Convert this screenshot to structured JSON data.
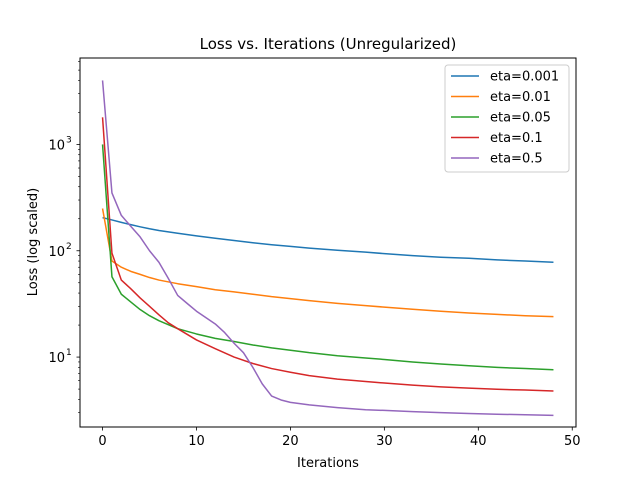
{
  "chart_data": {
    "type": "line",
    "title": "Loss vs. Iterations (Unregularized)",
    "xlabel": "Iterations",
    "ylabel": "Loss (log scaled)",
    "yscale": "log",
    "xlim": [
      -2.4,
      50.4
    ],
    "ylim": [
      2.2,
      6500
    ],
    "x_ticks": [
      0,
      10,
      20,
      30,
      40,
      50
    ],
    "y_ticks": [
      {
        "value": 10,
        "base": "10",
        "exp": "1"
      },
      {
        "value": 100,
        "base": "10",
        "exp": "2"
      },
      {
        "value": 1000,
        "base": "10",
        "exp": "3"
      }
    ],
    "grid": false,
    "legend_position": "top-right",
    "series": [
      {
        "name": "eta=0.001",
        "color": "#1f77b4",
        "points": [
          [
            0,
            205
          ],
          [
            1,
            195
          ],
          [
            2,
            185
          ],
          [
            3,
            176
          ],
          [
            4,
            168
          ],
          [
            5,
            161
          ],
          [
            6,
            155
          ],
          [
            8,
            146
          ],
          [
            10,
            138
          ],
          [
            12,
            131
          ],
          [
            14,
            125
          ],
          [
            16,
            119
          ],
          [
            18,
            114
          ],
          [
            20,
            110
          ],
          [
            22,
            106
          ],
          [
            25,
            101
          ],
          [
            28,
            97
          ],
          [
            30,
            94
          ],
          [
            33,
            90
          ],
          [
            36,
            87
          ],
          [
            39,
            85
          ],
          [
            42,
            82
          ],
          [
            45,
            80
          ],
          [
            48,
            78
          ]
        ]
      },
      {
        "name": "eta=0.01",
        "color": "#ff7f0e",
        "points": [
          [
            0,
            250
          ],
          [
            1,
            80
          ],
          [
            2,
            70
          ],
          [
            3,
            64
          ],
          [
            4,
            60
          ],
          [
            5,
            56
          ],
          [
            6,
            53
          ],
          [
            8,
            49
          ],
          [
            10,
            46
          ],
          [
            12,
            43
          ],
          [
            14,
            41
          ],
          [
            16,
            39
          ],
          [
            18,
            37
          ],
          [
            20,
            35.5
          ],
          [
            22,
            34
          ],
          [
            25,
            32
          ],
          [
            28,
            30.5
          ],
          [
            30,
            29.5
          ],
          [
            33,
            28.2
          ],
          [
            36,
            27
          ],
          [
            39,
            26
          ],
          [
            42,
            25.2
          ],
          [
            45,
            24.5
          ],
          [
            48,
            24
          ]
        ]
      },
      {
        "name": "eta=0.05",
        "color": "#2ca02c",
        "points": [
          [
            0,
            1000
          ],
          [
            1,
            57
          ],
          [
            2,
            39
          ],
          [
            3,
            33
          ],
          [
            4,
            28
          ],
          [
            5,
            24.5
          ],
          [
            6,
            22
          ],
          [
            8,
            18.5
          ],
          [
            10,
            16.5
          ],
          [
            12,
            15
          ],
          [
            14,
            14
          ],
          [
            16,
            13
          ],
          [
            18,
            12.2
          ],
          [
            20,
            11.6
          ],
          [
            22,
            11
          ],
          [
            25,
            10.3
          ],
          [
            28,
            9.8
          ],
          [
            30,
            9.5
          ],
          [
            33,
            9
          ],
          [
            36,
            8.6
          ],
          [
            39,
            8.3
          ],
          [
            42,
            8
          ],
          [
            45,
            7.8
          ],
          [
            48,
            7.6
          ]
        ]
      },
      {
        "name": "eta=0.1",
        "color": "#d62728",
        "points": [
          [
            0,
            1800
          ],
          [
            1,
            95
          ],
          [
            2,
            53
          ],
          [
            3,
            44
          ],
          [
            4,
            36
          ],
          [
            5,
            30
          ],
          [
            6,
            25
          ],
          [
            7,
            21
          ],
          [
            8,
            18.5
          ],
          [
            10,
            14.5
          ],
          [
            12,
            12
          ],
          [
            14,
            10
          ],
          [
            16,
            8.7
          ],
          [
            18,
            7.8
          ],
          [
            20,
            7.2
          ],
          [
            22,
            6.7
          ],
          [
            25,
            6.2
          ],
          [
            28,
            5.9
          ],
          [
            30,
            5.7
          ],
          [
            33,
            5.45
          ],
          [
            36,
            5.25
          ],
          [
            39,
            5.1
          ],
          [
            42,
            4.98
          ],
          [
            45,
            4.9
          ],
          [
            48,
            4.8
          ]
        ]
      },
      {
        "name": "eta=0.5",
        "color": "#9467bd",
        "points": [
          [
            0,
            4000
          ],
          [
            1,
            350
          ],
          [
            2,
            215
          ],
          [
            3,
            170
          ],
          [
            4,
            135
          ],
          [
            5,
            100
          ],
          [
            6,
            78
          ],
          [
            7,
            55
          ],
          [
            8,
            38
          ],
          [
            9,
            32
          ],
          [
            10,
            27
          ],
          [
            11,
            23.5
          ],
          [
            12,
            20.5
          ],
          [
            13,
            17
          ],
          [
            14,
            13.5
          ],
          [
            15,
            11
          ],
          [
            16,
            8
          ],
          [
            17,
            5.6
          ],
          [
            18,
            4.3
          ],
          [
            19,
            3.95
          ],
          [
            20,
            3.75
          ],
          [
            22,
            3.55
          ],
          [
            25,
            3.35
          ],
          [
            28,
            3.2
          ],
          [
            30,
            3.15
          ],
          [
            33,
            3.07
          ],
          [
            36,
            3
          ],
          [
            39,
            2.95
          ],
          [
            42,
            2.9
          ],
          [
            45,
            2.87
          ],
          [
            48,
            2.83
          ]
        ]
      }
    ]
  }
}
